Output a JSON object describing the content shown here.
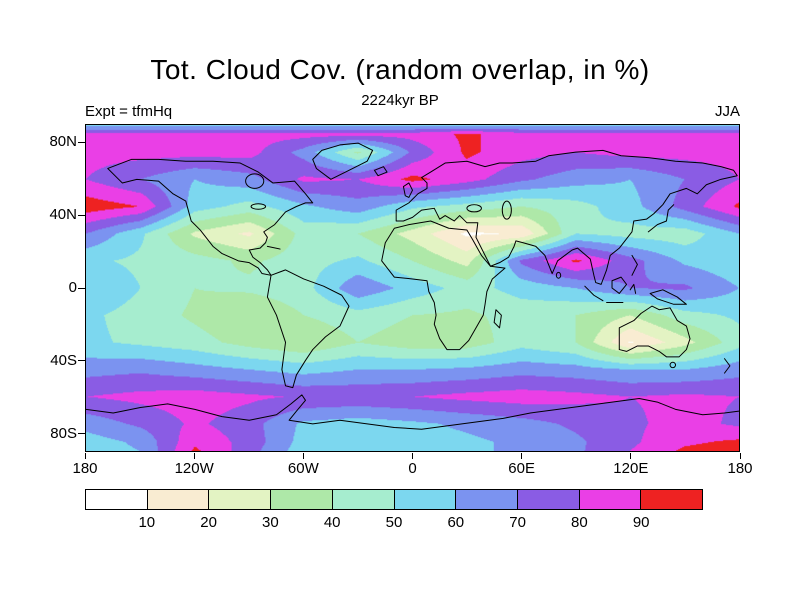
{
  "header": {
    "title": "Tot. Cloud Cov. (random overlap, in %)",
    "subtitle": "2224kyr BP",
    "experiment": "Expt = tfmHq",
    "season": "JJA"
  },
  "chart_data": {
    "type": "heatmap",
    "title": "Tot. Cloud Cov. (random overlap, in %)",
    "subtitle": "2224kyr BP",
    "annotations": {
      "top_left": "Expt = tfmHq",
      "top_right": "JJA"
    },
    "units": "%",
    "projection": "equirectangular-world",
    "lon_range": [
      -180,
      180
    ],
    "lat_range": [
      -90,
      90
    ],
    "legend_position": "bottom-colorbar",
    "grid_lines": false,
    "x_ticks": [
      {
        "label": "180",
        "lon": -180
      },
      {
        "label": "120W",
        "lon": -120
      },
      {
        "label": "60W",
        "lon": -60
      },
      {
        "label": "0",
        "lon": 0
      },
      {
        "label": "60E",
        "lon": 60
      },
      {
        "label": "120E",
        "lon": 120
      },
      {
        "label": "180",
        "lon": 180
      }
    ],
    "y_ticks": [
      {
        "label": "80N",
        "lat": 80
      },
      {
        "label": "40N",
        "lat": 40
      },
      {
        "label": "0",
        "lat": 0
      },
      {
        "label": "40S",
        "lat": -40
      },
      {
        "label": "80S",
        "lat": -80
      }
    ],
    "colorbar": {
      "levels": [
        10,
        20,
        30,
        40,
        50,
        60,
        70,
        80,
        90
      ],
      "colors": [
        "#ffffff",
        "#f9ecd2",
        "#e3f3c3",
        "#aee8a8",
        "#a6edcf",
        "#7cd7ef",
        "#7b93f0",
        "#8a5ce4",
        "#ea3fe6",
        "#ee2222"
      ]
    },
    "grid": {
      "lons": [
        -180,
        -150,
        -120,
        -90,
        -60,
        -30,
        0,
        30,
        60,
        90,
        120,
        150,
        180
      ],
      "lats": [
        90,
        85,
        75,
        60,
        45,
        30,
        15,
        0,
        -15,
        -30,
        -45,
        -60,
        -75,
        -85,
        -90
      ],
      "values_percent": [
        [
          56,
          56,
          56,
          56,
          56,
          56,
          56,
          56,
          56,
          56,
          56,
          56,
          56
        ],
        [
          84,
          84,
          84,
          84,
          84,
          84,
          84,
          92,
          84,
          84,
          84,
          84,
          84
        ],
        [
          84,
          84,
          84,
          84,
          66,
          38,
          72,
          92,
          84,
          80,
          84,
          84,
          84
        ],
        [
          80,
          70,
          60,
          66,
          82,
          80,
          93,
          84,
          72,
          64,
          60,
          70,
          80
        ],
        [
          96,
          90,
          55,
          46,
          58,
          66,
          52,
          46,
          40,
          46,
          56,
          74,
          92
        ],
        [
          70,
          52,
          28,
          18,
          44,
          40,
          26,
          8,
          11,
          50,
          46,
          44,
          60
        ],
        [
          52,
          48,
          44,
          38,
          46,
          52,
          40,
          26,
          72,
          92,
          74,
          58,
          52
        ],
        [
          60,
          50,
          40,
          42,
          46,
          68,
          56,
          46,
          54,
          60,
          70,
          72,
          60
        ],
        [
          52,
          46,
          38,
          30,
          40,
          46,
          40,
          38,
          44,
          40,
          30,
          46,
          52
        ],
        [
          52,
          48,
          44,
          36,
          30,
          40,
          34,
          34,
          46,
          40,
          9,
          26,
          46
        ],
        [
          66,
          68,
          64,
          60,
          56,
          60,
          60,
          62,
          66,
          64,
          60,
          60,
          66
        ],
        [
          80,
          83,
          85,
          82,
          79,
          78,
          80,
          83,
          85,
          83,
          80,
          82,
          80
        ],
        [
          64,
          72,
          82,
          74,
          58,
          55,
          58,
          62,
          66,
          72,
          78,
          84,
          78
        ],
        [
          55,
          62,
          88,
          76,
          56,
          52,
          55,
          58,
          62,
          68,
          78,
          88,
          92
        ],
        [
          55,
          60,
          92,
          74,
          54,
          52,
          55,
          58,
          62,
          68,
          80,
          92,
          96
        ]
      ]
    }
  }
}
